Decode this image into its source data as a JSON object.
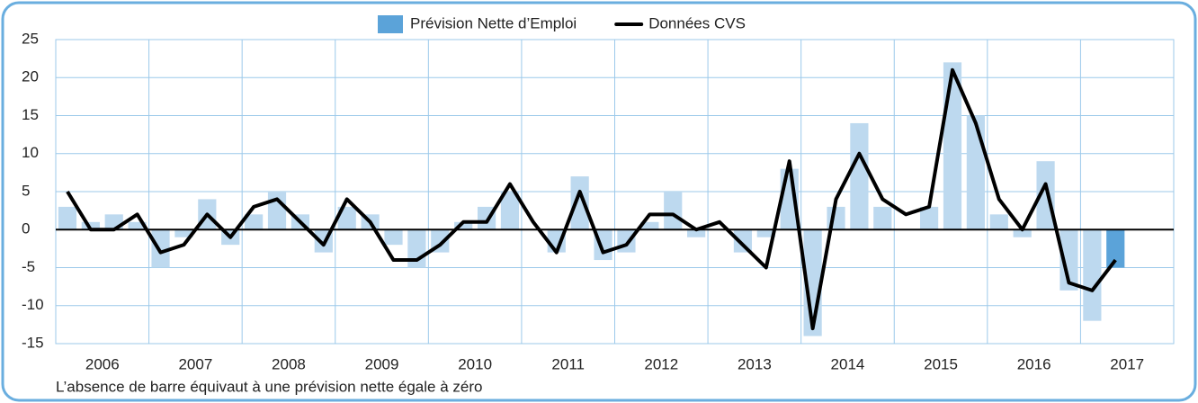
{
  "chart_data": {
    "type": "bar_line",
    "x_labels": [
      "2006",
      "2007",
      "2008",
      "2009",
      "2010",
      "2011",
      "2012",
      "2013",
      "2014",
      "2015",
      "2016",
      "2017"
    ],
    "quarters_per_label": 4,
    "series": [
      {
        "name": "Prévision Nette d’Emploi",
        "type": "bar",
        "color": "#5ba3d9",
        "values": [
          3,
          1,
          2,
          1,
          -5,
          -1,
          4,
          -2,
          2,
          5,
          2,
          -3,
          3,
          2,
          -2,
          -5,
          -3,
          1,
          3,
          5,
          0,
          -3,
          7,
          -4,
          -3,
          1,
          5,
          -1,
          0,
          -3,
          -1,
          8,
          -14,
          3,
          14,
          3,
          0,
          3,
          22,
          15,
          2,
          -1,
          9,
          -8,
          -12,
          -5
        ],
        "bar_colors": [
          "#bdd9ef",
          "#bdd9ef",
          "#bdd9ef",
          "#bdd9ef",
          "#bdd9ef",
          "#bdd9ef",
          "#bdd9ef",
          "#bdd9ef",
          "#bdd9ef",
          "#bdd9ef",
          "#bdd9ef",
          "#bdd9ef",
          "#bdd9ef",
          "#bdd9ef",
          "#bdd9ef",
          "#bdd9ef",
          "#bdd9ef",
          "#bdd9ef",
          "#bdd9ef",
          "#bdd9ef",
          "#bdd9ef",
          "#bdd9ef",
          "#bdd9ef",
          "#bdd9ef",
          "#bdd9ef",
          "#bdd9ef",
          "#bdd9ef",
          "#bdd9ef",
          "#bdd9ef",
          "#bdd9ef",
          "#bdd9ef",
          "#bdd9ef",
          "#bdd9ef",
          "#bdd9ef",
          "#bdd9ef",
          "#bdd9ef",
          "#bdd9ef",
          "#bdd9ef",
          "#bdd9ef",
          "#bdd9ef",
          "#bdd9ef",
          "#bdd9ef",
          "#bdd9ef",
          "#bdd9ef",
          "#bdd9ef",
          "#5ba3d9"
        ]
      },
      {
        "name": "Données CVS",
        "type": "line",
        "color": "#000000",
        "values": [
          5,
          0,
          0,
          2,
          -3,
          -2,
          2,
          -1,
          3,
          4,
          1,
          -2,
          4,
          1,
          -4,
          -4,
          -2,
          1,
          1,
          6,
          1,
          -3,
          5,
          -3,
          -2,
          2,
          2,
          0,
          1,
          -2,
          -5,
          9,
          -13,
          4,
          10,
          4,
          2,
          3,
          21,
          14,
          4,
          0,
          6,
          -7,
          -8,
          -4
        ]
      }
    ],
    "ylim": [
      -15,
      25
    ],
    "yticks": [
      -15,
      -10,
      -5,
      0,
      5,
      10,
      15,
      20,
      25
    ],
    "grid": true,
    "legend": "top",
    "note": "L’absence de barre équivaut à une prévision nette égale à zéro"
  }
}
